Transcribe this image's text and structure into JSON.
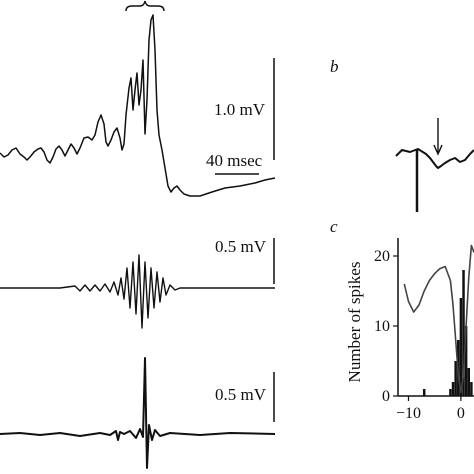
{
  "figure": {
    "panel_b_label": "b",
    "panel_c_label": "c"
  },
  "panel_a": {
    "scale_top_voltage": "1.0 mV",
    "scale_time": "40 msec",
    "scale_mid_voltage": "0.5 mV",
    "scale_bottom_voltage": "0.5 mV"
  },
  "chart_data": {
    "type": "bar",
    "title": "",
    "xlabel": "",
    "ylabel": "Number of spikes",
    "xlim": [
      -12,
      2.5
    ],
    "ylim": [
      0,
      22
    ],
    "x_ticks": [
      -10,
      0
    ],
    "y_ticks": [
      0,
      10,
      20
    ],
    "x_tick_labels": [
      "−10",
      "0"
    ],
    "y_tick_labels": [
      "0",
      "10",
      "20"
    ],
    "series": [
      {
        "type": "bar",
        "x": [
          -7,
          -2,
          -1.5,
          -1,
          -0.5,
          0,
          0.5,
          1,
          1.5,
          2
        ],
        "values": [
          1,
          1,
          2,
          5,
          8,
          14,
          18,
          10,
          4,
          2
        ]
      }
    ],
    "line": {
      "x": [
        -10.8,
        -10,
        -9,
        -8,
        -7,
        -6,
        -5,
        -4,
        -3,
        -2,
        -1.5,
        -1,
        -0.5,
        0,
        0.5,
        1,
        1.5,
        2,
        2.5
      ],
      "y": [
        16,
        13.5,
        12,
        13,
        15,
        16.5,
        17.5,
        18.2,
        18.5,
        16.5,
        13,
        8,
        3,
        0.5,
        3,
        10,
        17,
        21.5,
        20.5
      ]
    }
  }
}
